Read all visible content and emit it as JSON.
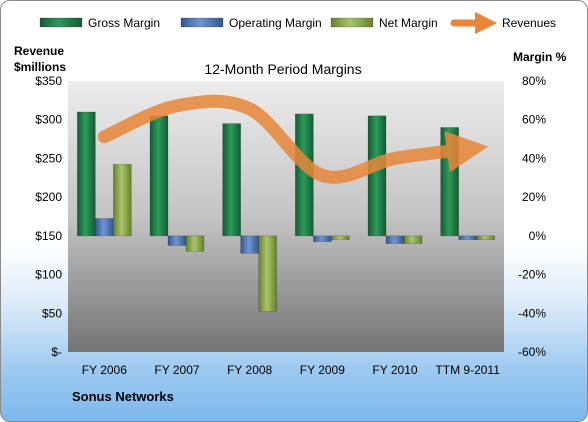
{
  "chart_data": {
    "type": "bar",
    "title": "12-Month Period Margins",
    "company": "Sonus Networks",
    "categories": [
      "FY 2006",
      "FY 2007",
      "FY 2008",
      "FY 2009",
      "FY 2010",
      "TTM 9-2011"
    ],
    "left_axis": {
      "label_line1": "Revenue",
      "label_line2": "$millions",
      "ylim": [
        0,
        350
      ],
      "ticks": [
        0,
        50,
        100,
        150,
        200,
        250,
        300,
        350
      ],
      "tick_labels": [
        "$-",
        "$50",
        "$100",
        "$150",
        "$200",
        "$250",
        "$300",
        "$350"
      ]
    },
    "right_axis": {
      "label": "Margin %",
      "ylim": [
        -60,
        80
      ],
      "ticks": [
        -60,
        -40,
        -20,
        0,
        20,
        40,
        60,
        80
      ],
      "tick_labels": [
        "-60%",
        "-40%",
        "-20%",
        "0%",
        "20%",
        "40%",
        "60%",
        "80%"
      ]
    },
    "series": [
      {
        "name": "Gross Margin",
        "axis": "right",
        "kind": "bar",
        "color": "#1e7a46",
        "values": [
          64,
          62,
          58,
          63,
          62,
          56
        ]
      },
      {
        "name": "Operating Margin",
        "axis": "right",
        "kind": "bar",
        "color": "#4f78b8",
        "values": [
          9,
          -5,
          -9,
          -3,
          -4,
          -2
        ]
      },
      {
        "name": "Net Margin",
        "axis": "right",
        "kind": "bar",
        "color": "#8aa84e",
        "values": [
          37,
          -8,
          -39,
          -2,
          -4,
          -2
        ]
      },
      {
        "name": "Revenues",
        "axis": "left",
        "kind": "line",
        "color": "#e8873a",
        "values": [
          278,
          318,
          314,
          228,
          250,
          262
        ]
      }
    ],
    "legend_position": "top",
    "grid": false
  }
}
